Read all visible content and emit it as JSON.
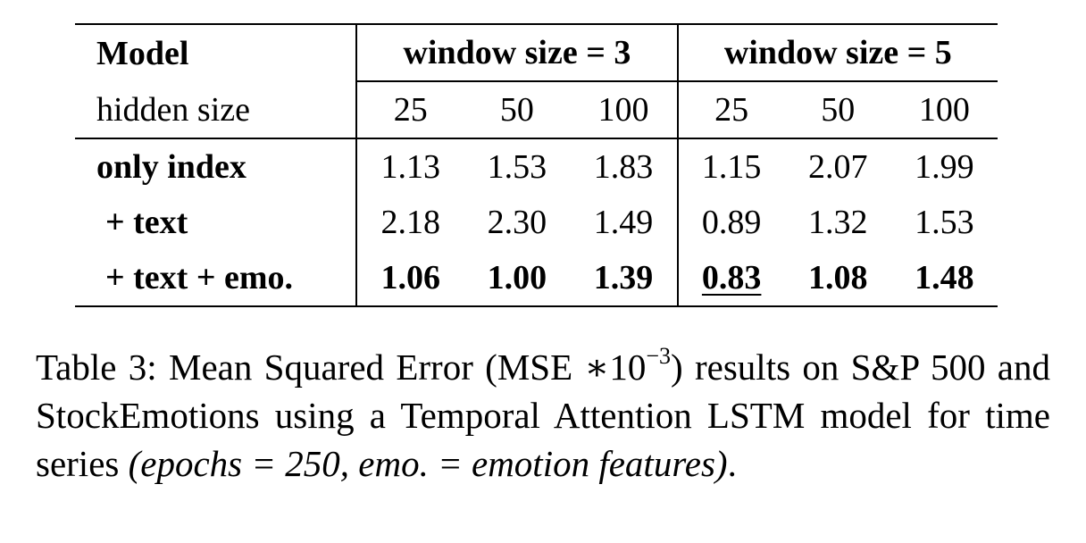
{
  "table": {
    "header": {
      "model_label": "Model",
      "group1": "window size = 3",
      "group2": "window size = 5",
      "hidden_label": "hidden size",
      "hidden_sizes": [
        "25",
        "50",
        "100",
        "25",
        "50",
        "100"
      ]
    },
    "rows": [
      {
        "label": "only index",
        "values": [
          "1.13",
          "1.53",
          "1.83",
          "1.15",
          "2.07",
          "1.99"
        ]
      },
      {
        "label": "+ text",
        "values": [
          "2.18",
          "2.30",
          "1.49",
          "0.89",
          "1.32",
          "1.53"
        ]
      },
      {
        "label": "+ text + emo.",
        "values": [
          "1.06",
          "1.00",
          "1.39",
          "0.83",
          "1.08",
          "1.48"
        ]
      }
    ]
  },
  "caption": {
    "prefix": "Table 3: Mean Squared Error (MSE ∗10",
    "exponent": "−3",
    "middle": ") results on S&P 500 and StockEmotions using a Temporal Attention LSTM model for time series ",
    "italic": "(epochs = 250, emo. = emotion features)",
    "suffix": "."
  }
}
